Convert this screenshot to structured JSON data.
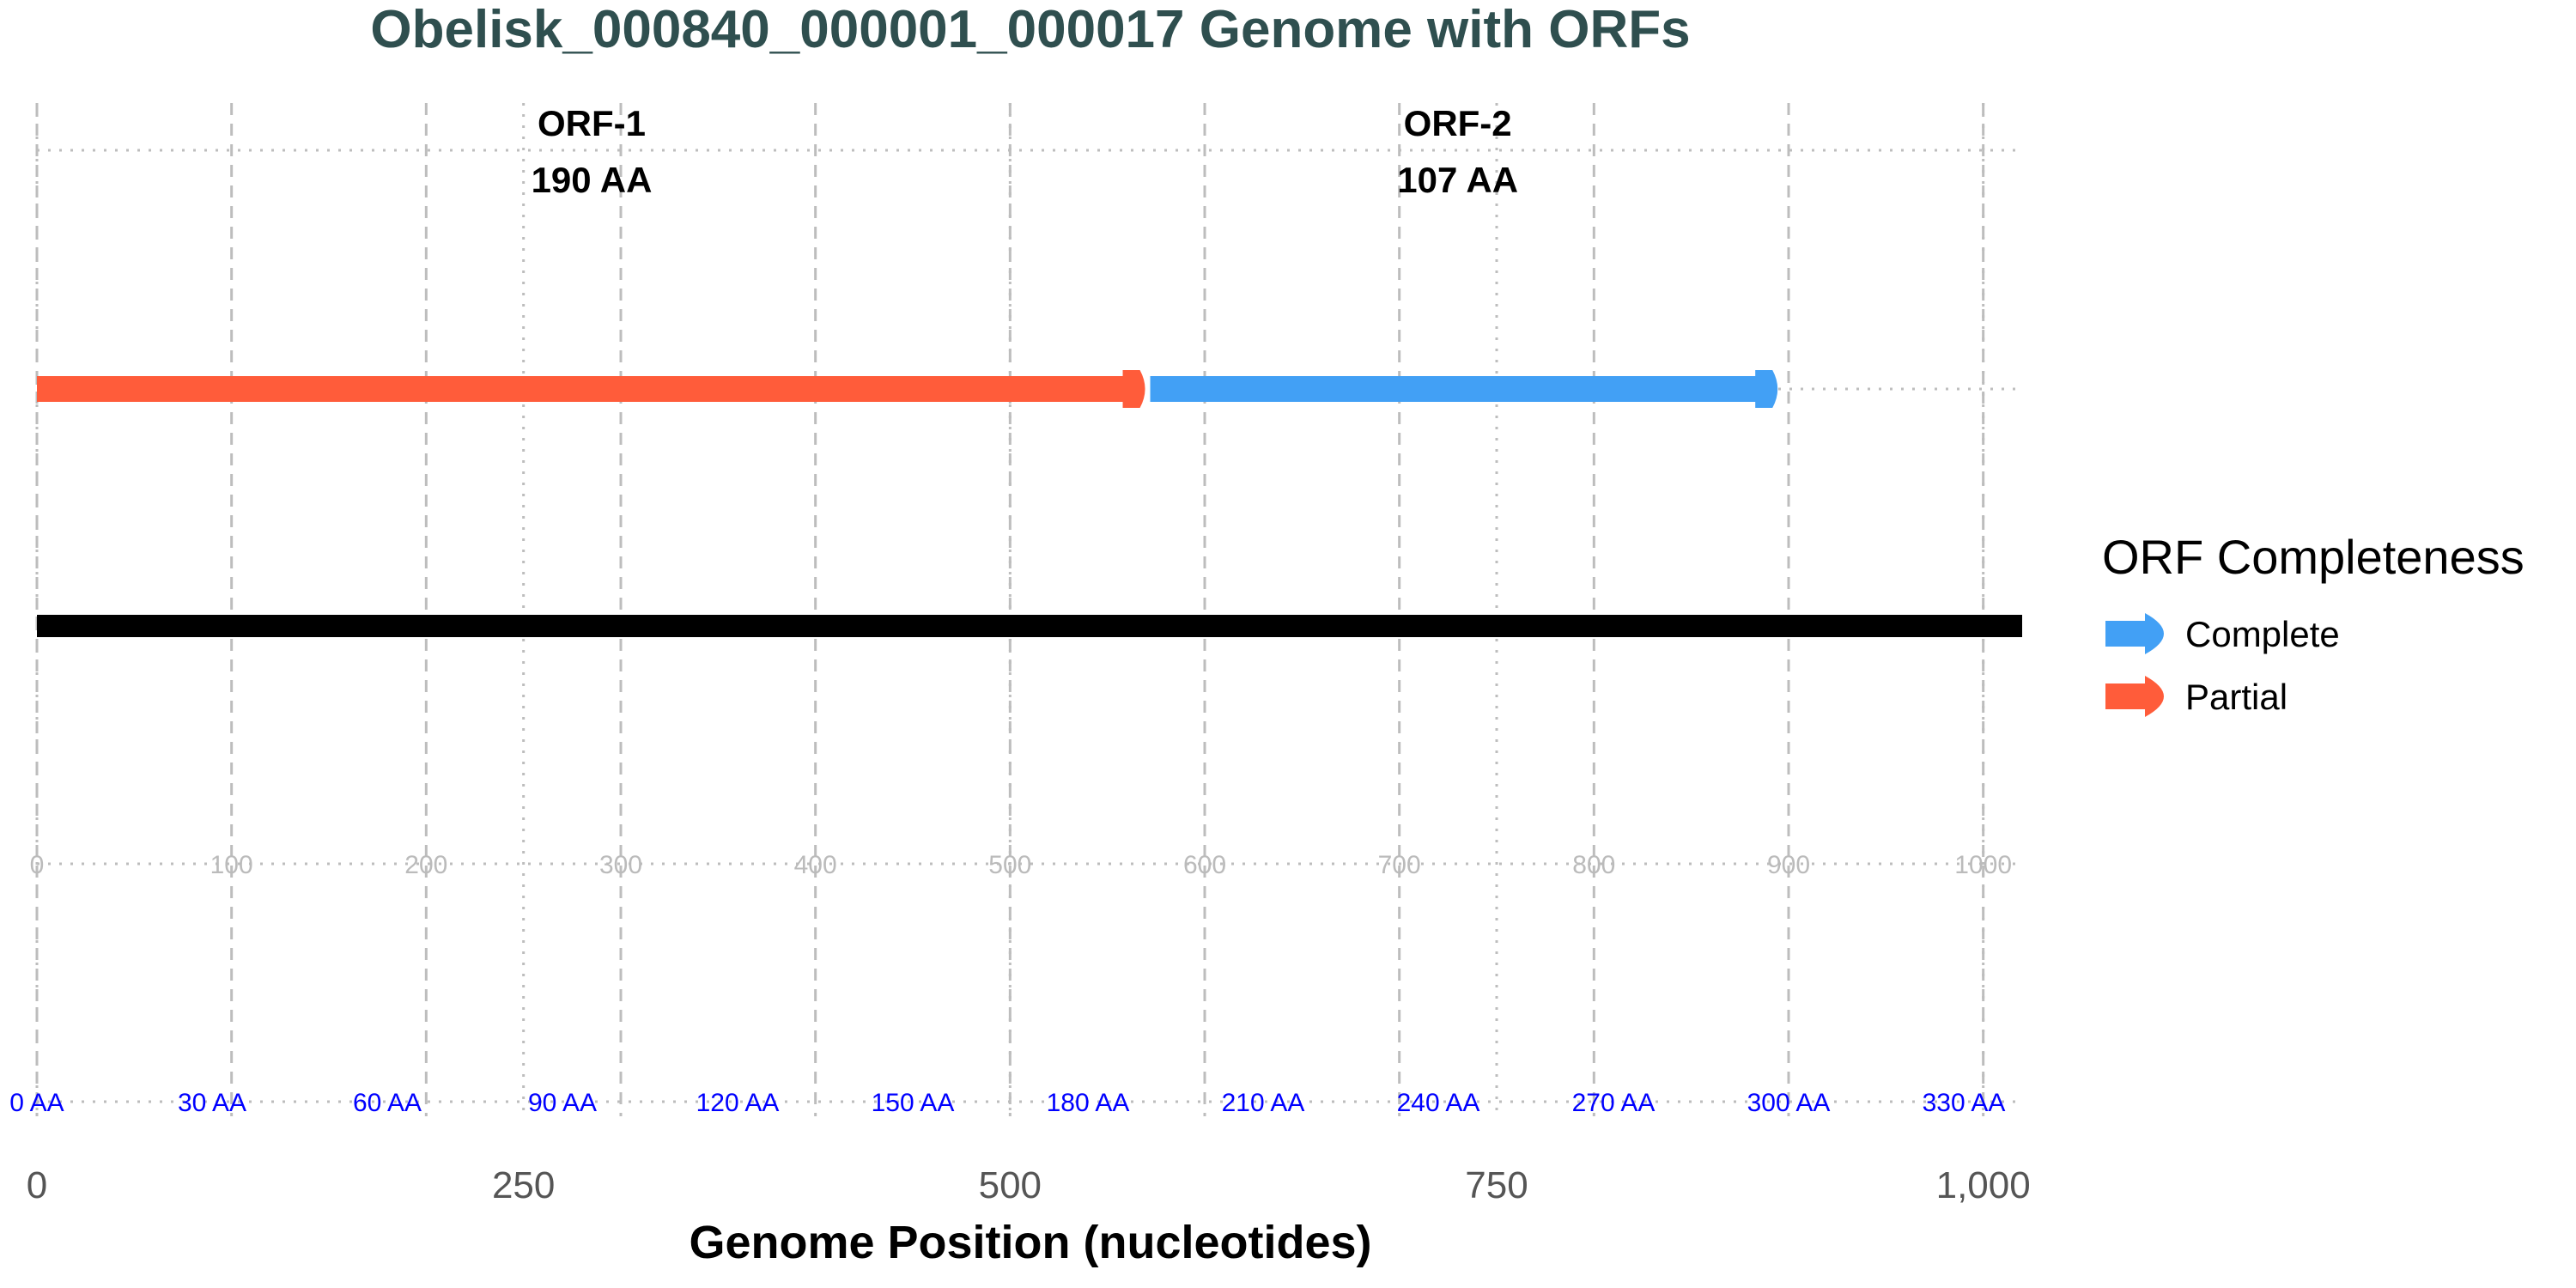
{
  "chart_data": {
    "type": "genome-map",
    "title": "Obelisk_000840_000001_000017 Genome with ORFs",
    "xlabel": "Genome Position (nucleotides)",
    "xlim": [
      0,
      1020
    ],
    "x_ticks": [
      0,
      250,
      500,
      750,
      1000
    ],
    "x_tick_labels": [
      "0",
      "250",
      "500",
      "750",
      "1,000"
    ],
    "genome_length": 1020,
    "orfs": [
      {
        "name": "ORF-1",
        "aa_label": "190 AA",
        "start": 0,
        "end": 572,
        "status": "Partial",
        "label_x": 285
      },
      {
        "name": "ORF-2",
        "aa_label": "107 AA",
        "start": 572,
        "end": 897,
        "status": "Complete",
        "label_x": 730
      }
    ],
    "nt_ruler": {
      "positions": [
        0,
        100,
        200,
        300,
        400,
        500,
        600,
        700,
        800,
        900,
        1000
      ],
      "labels": [
        "0",
        "100",
        "200",
        "300",
        "400",
        "500",
        "600",
        "700",
        "800",
        "900",
        "1000"
      ]
    },
    "aa_ruler": {
      "positions": [
        0,
        90,
        180,
        270,
        360,
        450,
        540,
        630,
        720,
        810,
        900,
        990
      ],
      "labels": [
        "0 AA",
        "30 AA",
        "60 AA",
        "90 AA",
        "120 AA",
        "150 AA",
        "180 AA",
        "210 AA",
        "240 AA",
        "270 AA",
        "300 AA",
        "330 AA"
      ]
    },
    "legend": {
      "title": "ORF Completeness",
      "placement": "right",
      "items": [
        {
          "label": "Complete",
          "color": "#42A0F5"
        },
        {
          "label": "Partial",
          "color": "#FF5C3A"
        }
      ]
    },
    "colors": {
      "Complete": "#42A0F5",
      "Partial": "#FF5C3A",
      "genome": "#000000",
      "title": "#2F4F4F",
      "aa_text": "#0000FF",
      "nt_text": "#BBBBBB",
      "grid": "#BDBDBD"
    }
  }
}
